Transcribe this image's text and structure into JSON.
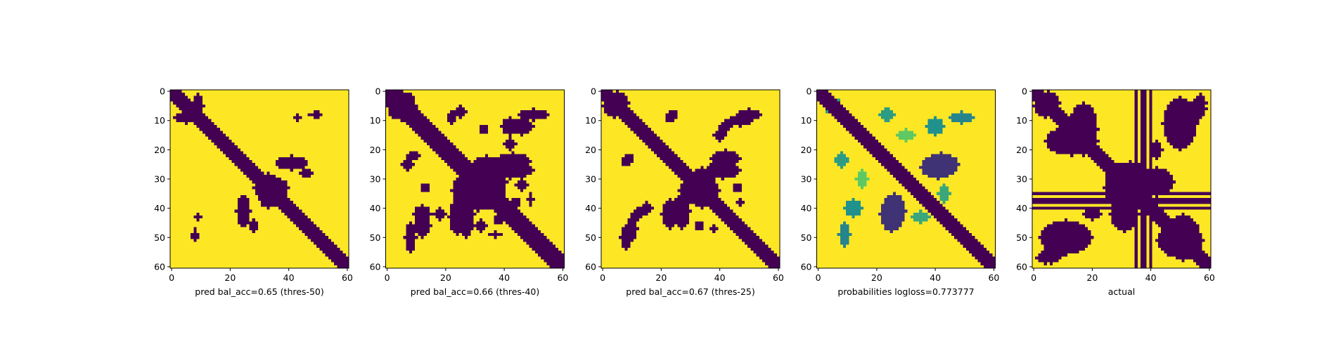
{
  "chart_data": [
    {
      "type": "heatmap",
      "xlabel": "pred bal_acc=0.65 (thres-50)",
      "size": 61,
      "xticks": [
        0,
        20,
        40,
        60
      ],
      "yticks": [
        0,
        10,
        20,
        30,
        40,
        50,
        60
      ],
      "xlim": [
        0,
        60
      ],
      "ylim": [
        60,
        0
      ],
      "grid": false,
      "colormap": "viridis",
      "value_range": [
        0,
        1
      ],
      "pattern": {
        "diag_width": 2.2,
        "blobs": [
          {
            "cx": 34,
            "cy": 33,
            "rx": 6,
            "ry": 4,
            "v": 0
          },
          {
            "cx": 41,
            "cy": 24,
            "rx": 5,
            "ry": 2,
            "v": 0
          },
          {
            "cx": 25,
            "cy": 41,
            "rx": 2,
            "ry": 5,
            "v": 0
          },
          {
            "cx": 9,
            "cy": 5,
            "rx": 2,
            "ry": 4,
            "v": 0
          },
          {
            "cx": 50,
            "cy": 8,
            "rx": 1.5,
            "ry": 1,
            "v": 0
          },
          {
            "cx": 43,
            "cy": 9,
            "rx": 1,
            "ry": 1.5,
            "v": 0
          },
          {
            "cx": 8,
            "cy": 49,
            "rx": 1,
            "ry": 2,
            "v": 0
          },
          {
            "cx": 28,
            "cy": 46,
            "rx": 1.5,
            "ry": 2,
            "v": 0
          }
        ]
      }
    },
    {
      "type": "heatmap",
      "xlabel": "pred bal_acc=0.66 (thres-40)",
      "size": 61,
      "xticks": [
        0,
        20,
        40,
        60
      ],
      "yticks": [
        0,
        10,
        20,
        30,
        40,
        50,
        60
      ],
      "xlim": [
        0,
        60
      ],
      "ylim": [
        60,
        0
      ],
      "grid": false,
      "colormap": "viridis",
      "value_range": [
        0,
        1
      ],
      "pattern": {
        "diag_width": 3.2,
        "blobs": [
          {
            "cx": 31,
            "cy": 34,
            "rx": 9,
            "ry": 7,
            "v": 0
          },
          {
            "cx": 5,
            "cy": 5,
            "rx": 5,
            "ry": 5,
            "v": 0
          },
          {
            "cx": 43,
            "cy": 24,
            "rx": 6,
            "ry": 3,
            "v": 0
          },
          {
            "cx": 27,
            "cy": 42,
            "rx": 3,
            "ry": 8,
            "v": 0
          },
          {
            "cx": 50,
            "cy": 8,
            "rx": 5,
            "ry": 2,
            "v": 0
          },
          {
            "cx": 42,
            "cy": 12,
            "rx": 3,
            "ry": 3,
            "v": 0
          },
          {
            "cx": 25,
            "cy": 7,
            "rx": 2,
            "ry": 2,
            "v": 0
          },
          {
            "cx": 9,
            "cy": 22,
            "rx": 2,
            "ry": 1.5,
            "v": 0
          },
          {
            "cx": 12,
            "cy": 46,
            "rx": 3,
            "ry": 4,
            "v": 0
          },
          {
            "cx": 18,
            "cy": 42,
            "rx": 2,
            "ry": 2,
            "v": 0
          },
          {
            "cx": 13,
            "cy": 33,
            "rx": 1.5,
            "ry": 1.5,
            "v": 0
          },
          {
            "cx": 37,
            "cy": 49,
            "rx": 2,
            "ry": 1,
            "v": 0
          },
          {
            "cx": 46,
            "cy": 32,
            "rx": 2,
            "ry": 2,
            "v": 0
          },
          {
            "cx": 44,
            "cy": 38,
            "rx": 1.5,
            "ry": 1.5,
            "v": 0
          }
        ]
      }
    },
    {
      "type": "heatmap",
      "xlabel": "pred bal_acc=0.67 (thres-25)",
      "size": 61,
      "xticks": [
        0,
        20,
        40,
        60
      ],
      "yticks": [
        0,
        10,
        20,
        30,
        40,
        50,
        60
      ],
      "xlim": [
        0,
        60
      ],
      "ylim": [
        60,
        0
      ],
      "grid": false,
      "colormap": "viridis",
      "value_range": [
        0,
        1
      ],
      "pattern": {
        "diag_width": 2.8,
        "blobs": [
          {
            "cx": 33,
            "cy": 34,
            "rx": 7,
            "ry": 5,
            "v": 0
          },
          {
            "cx": 4,
            "cy": 5,
            "rx": 4,
            "ry": 4,
            "v": 0
          },
          {
            "cx": 42,
            "cy": 23,
            "rx": 5,
            "ry": 3,
            "v": 0
          },
          {
            "cx": 27,
            "cy": 41,
            "rx": 3,
            "ry": 6,
            "v": 0
          },
          {
            "cx": 50,
            "cy": 8,
            "rx": 4,
            "ry": 2,
            "v": 0
          },
          {
            "cx": 42,
            "cy": 12,
            "rx": 2,
            "ry": 2,
            "v": 0
          },
          {
            "cx": 24,
            "cy": 8,
            "rx": 1.5,
            "ry": 1.5,
            "v": 0
          },
          {
            "cx": 9,
            "cy": 23,
            "rx": 1.5,
            "ry": 1.5,
            "v": 0
          },
          {
            "cx": 10,
            "cy": 47,
            "rx": 2,
            "ry": 4,
            "v": 0
          },
          {
            "cx": 15,
            "cy": 40,
            "rx": 2,
            "ry": 2,
            "v": 0
          },
          {
            "cx": 38,
            "cy": 47,
            "rx": 1.5,
            "ry": 1,
            "v": 0
          },
          {
            "cx": 46,
            "cy": 33,
            "rx": 1.5,
            "ry": 1.5,
            "v": 0
          }
        ]
      }
    },
    {
      "type": "heatmap",
      "xlabel": "probabilities logloss=0.773777",
      "size": 61,
      "xticks": [
        0,
        20,
        40,
        60
      ],
      "yticks": [
        0,
        10,
        20,
        30,
        40,
        50,
        60
      ],
      "xlim": [
        0,
        60
      ],
      "ylim": [
        60,
        0
      ],
      "grid": false,
      "colormap": "viridis",
      "value_range": [
        0,
        1
      ],
      "pattern": {
        "diag_width": 2.3,
        "blobs": [
          {
            "cx": 42,
            "cy": 25,
            "rx": 6,
            "ry": 4,
            "v": 0.15
          },
          {
            "cx": 26,
            "cy": 41,
            "rx": 4,
            "ry": 6,
            "v": 0.15
          },
          {
            "cx": 49,
            "cy": 9,
            "rx": 4,
            "ry": 2,
            "v": 0.45
          },
          {
            "cx": 9,
            "cy": 49,
            "rx": 2,
            "ry": 4,
            "v": 0.45
          },
          {
            "cx": 24,
            "cy": 8,
            "rx": 2,
            "ry": 2,
            "v": 0.55
          },
          {
            "cx": 8,
            "cy": 23,
            "rx": 2,
            "ry": 2,
            "v": 0.55
          },
          {
            "cx": 12,
            "cy": 40,
            "rx": 3,
            "ry": 3,
            "v": 0.5
          },
          {
            "cx": 40,
            "cy": 12,
            "rx": 3,
            "ry": 3,
            "v": 0.5
          },
          {
            "cx": 35,
            "cy": 43,
            "rx": 3,
            "ry": 2,
            "v": 0.6
          },
          {
            "cx": 43,
            "cy": 35,
            "rx": 2,
            "ry": 3,
            "v": 0.6
          },
          {
            "cx": 5,
            "cy": 5,
            "rx": 3,
            "ry": 3,
            "v": 0.55
          },
          {
            "cx": 30,
            "cy": 15,
            "rx": 3,
            "ry": 2,
            "v": 0.75
          },
          {
            "cx": 15,
            "cy": 30,
            "rx": 2,
            "ry": 3,
            "v": 0.75
          }
        ]
      }
    },
    {
      "type": "heatmap",
      "xlabel": "actual",
      "size": 61,
      "xticks": [
        0,
        20,
        40,
        60
      ],
      "yticks": [
        0,
        10,
        20,
        30,
        40,
        50,
        60
      ],
      "xlim": [
        0,
        60
      ],
      "ylim": [
        60,
        0
      ],
      "grid": false,
      "colormap": "viridis",
      "value_range": [
        0,
        1
      ],
      "pattern": {
        "diag_width": 2.5,
        "dark_lines": [
          35,
          37,
          38,
          40
        ],
        "blobs": [
          {
            "cx": 33,
            "cy": 30,
            "rx": 8,
            "ry": 6,
            "v": 0
          },
          {
            "cx": 13,
            "cy": 17,
            "rx": 9,
            "ry": 5,
            "v": 0
          },
          {
            "cx": 17,
            "cy": 13,
            "rx": 5,
            "ry": 9,
            "v": 0
          },
          {
            "cx": 48,
            "cy": 12,
            "rx": 3,
            "ry": 7,
            "v": 0
          },
          {
            "cx": 42,
            "cy": 31,
            "rx": 6,
            "ry": 4,
            "v": 0
          },
          {
            "cx": 31,
            "cy": 42,
            "rx": 5,
            "ry": 6,
            "v": 0
          },
          {
            "cx": 11,
            "cy": 50,
            "rx": 9,
            "ry": 6,
            "v": 0
          },
          {
            "cx": 50,
            "cy": 51,
            "rx": 8,
            "ry": 6,
            "v": 0
          },
          {
            "cx": 5,
            "cy": 4,
            "rx": 4,
            "ry": 4,
            "v": 0
          },
          {
            "cx": 56,
            "cy": 6,
            "rx": 3,
            "ry": 4,
            "v": 0
          },
          {
            "cx": 20,
            "cy": 42,
            "rx": 3,
            "ry": 2,
            "v": 0
          },
          {
            "cx": 4,
            "cy": 57,
            "rx": 3,
            "ry": 2,
            "v": 0
          }
        ]
      }
    }
  ]
}
